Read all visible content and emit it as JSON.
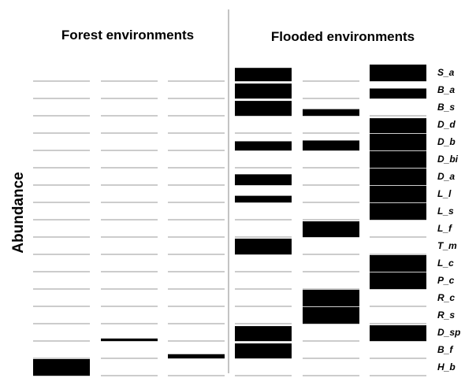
{
  "chart_data": {
    "type": "heatmap",
    "group_titles": [
      "Forest environments",
      "Flooded environments"
    ],
    "ylabel": "Abundance",
    "species": [
      "S_a",
      "B_a",
      "B_s",
      "D_d",
      "D_b",
      "D_bi",
      "D_a",
      "L_l",
      "L_s",
      "L_f",
      "T_m",
      "L_c",
      "P_c",
      "R_c",
      "R_s",
      "D_sp",
      "B_f",
      "H_b"
    ],
    "columns": [
      {
        "group": "Forest environments",
        "values": [
          0,
          0,
          0,
          0,
          0,
          0,
          0,
          0,
          0,
          0,
          0,
          0,
          0,
          0,
          0,
          0,
          0,
          1.0
        ]
      },
      {
        "group": "Forest environments",
        "values": [
          0,
          0,
          0,
          0,
          0,
          0,
          0,
          0,
          0,
          0,
          0,
          0,
          0,
          0,
          0,
          0.15,
          0,
          0
        ]
      },
      {
        "group": "Forest environments",
        "values": [
          0,
          0,
          0,
          0,
          0,
          0,
          0,
          0,
          0,
          0,
          0,
          0,
          0,
          0,
          0,
          0,
          0.25,
          0
        ]
      },
      {
        "group": "Flooded environments",
        "values": [
          0.8,
          0.9,
          0.9,
          0,
          0.55,
          0,
          0.65,
          0.4,
          0,
          0,
          0.95,
          0,
          0,
          0,
          0,
          0.9,
          0.9,
          0
        ]
      },
      {
        "group": "Flooded environments",
        "values": [
          0,
          0,
          0.4,
          0,
          0.6,
          0,
          0,
          0,
          0,
          0.95,
          0,
          0,
          0,
          1.0,
          1.0,
          0,
          0,
          0
        ]
      },
      {
        "group": "Flooded environments",
        "values": [
          1.0,
          0.6,
          0,
          0.9,
          1.0,
          1.0,
          1.0,
          1.0,
          1.0,
          0,
          0,
          1.0,
          1.0,
          0,
          0,
          0.95,
          0,
          0
        ]
      }
    ],
    "colors": {
      "fill": "#000000",
      "baseline": "#999999",
      "divider": "#888888"
    }
  }
}
